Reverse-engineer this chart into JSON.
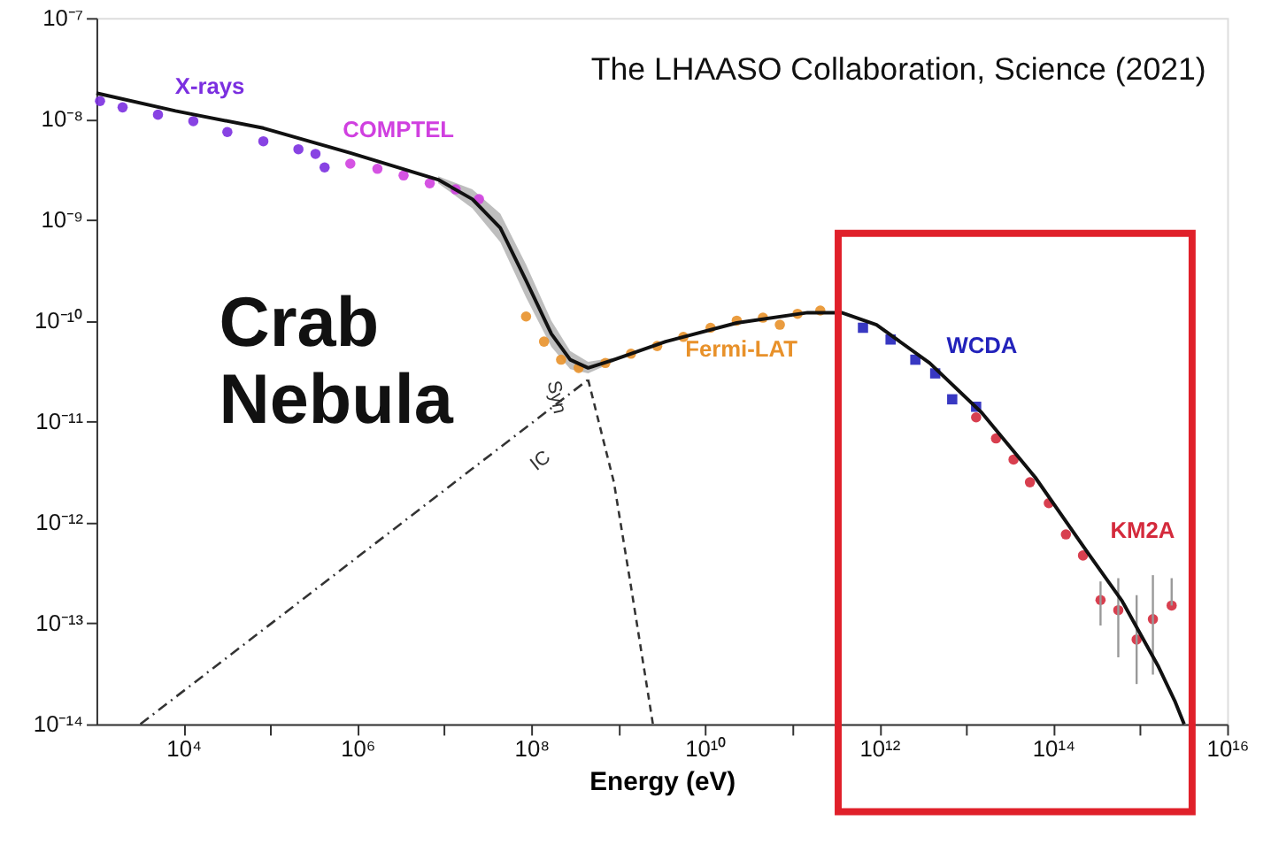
{
  "chart_data": {
    "type": "scatter",
    "xlabel": "Energy (eV)",
    "annotations": [
      "The LHAASO Collaboration, Science (2021)",
      "Crab Nebula"
    ],
    "log": "xy",
    "grid": false,
    "legend": false,
    "xlim": [
      1000,
      1e+16
    ],
    "ylim": [
      1e-14,
      1e-07
    ],
    "xticks": [
      {
        "value": 10000,
        "label": "10⁴"
      },
      {
        "value": 100000,
        "label": null
      },
      {
        "value": 1000000.0,
        "label": "10⁶"
      },
      {
        "value": 10000000.0,
        "label": null
      },
      {
        "value": 100000000.0,
        "label": "10⁸"
      },
      {
        "value": 1000000000.0,
        "label": null
      },
      {
        "value": 10000000000.0,
        "label": "10¹⁰"
      },
      {
        "value": 100000000000.0,
        "label": null
      },
      {
        "value": 1000000000000.0,
        "label": "10¹²"
      },
      {
        "value": 10000000000000.0,
        "label": null
      },
      {
        "value": 100000000000000.0,
        "label": "10¹⁴"
      },
      {
        "value": 1000000000000000.0,
        "label": null
      },
      {
        "value": 1e+16,
        "label": "10¹⁶"
      }
    ],
    "yticks": [
      {
        "value": 1e-14,
        "label": "10⁻¹⁴"
      },
      {
        "value": 1e-13,
        "label": "10⁻¹³"
      },
      {
        "value": 1e-12,
        "label": "10⁻¹²"
      },
      {
        "value": 1e-11,
        "label": "10⁻¹¹"
      },
      {
        "value": 1e-10,
        "label": "10⁻¹⁰"
      },
      {
        "value": 1e-09,
        "label": "10⁻⁹"
      },
      {
        "value": 1e-08,
        "label": "10⁻⁸"
      },
      {
        "value": 1e-07,
        "label": "10⁻⁷"
      }
    ],
    "series": [
      {
        "name": "X-rays",
        "marker": "circle",
        "color": "#7b2fe0",
        "x": [
          1100,
          2000,
          5100,
          13000,
          32000,
          83000,
          210000,
          330000,
          420000
        ],
        "values": [
          1.5e-08,
          1.3e-08,
          1.1e-08,
          9.5e-09,
          7.4e-09,
          6e-09,
          5e-09,
          4.5e-09,
          3.3e-09
        ]
      },
      {
        "name": "COMPTEL",
        "marker": "circle",
        "color": "#d040e0",
        "x": [
          830000,
          1700000.0,
          3400000.0,
          6800000.0,
          13500000.0,
          25000000.0
        ],
        "values": [
          3.6e-09,
          3.2e-09,
          2.75e-09,
          2.3e-09,
          2e-09,
          1.6e-09
        ]
      },
      {
        "name": "Fermi-LAT",
        "marker": "circle",
        "color": "#e8912a",
        "x": [
          87000000.0,
          140000000.0,
          220000000.0,
          350000000.0,
          710000000.0,
          1400000000.0,
          2800000000.0,
          5600000000.0,
          11500000000.0,
          23000000000.0,
          46000000000.0,
          72000000000.0,
          115000000000.0,
          210000000000.0
        ],
        "values": [
          1.1e-10,
          6.2e-11,
          4.1e-11,
          3.4e-11,
          3.8e-11,
          4.7e-11,
          5.6e-11,
          6.9e-11,
          8.5e-11,
          1e-10,
          1.07e-10,
          9.1e-11,
          1.17e-10,
          1.26e-10
        ]
      },
      {
        "name": "WCDA",
        "marker": "square",
        "color": "#2222bb",
        "x": [
          650000000000.0,
          1350000000000.0,
          2600000000000.0,
          4400000000000.0,
          6900000000000.0,
          13000000000000.0
        ],
        "values": [
          8.5e-11,
          6.5e-11,
          4.1e-11,
          3e-11,
          1.66e-11,
          1.4e-11
        ]
      },
      {
        "name": "KM2A",
        "marker": "circle",
        "color": "#d42a3c",
        "x": [
          13000000000000.0,
          22000000000000.0,
          35000000000000.0,
          54000000000000.0,
          89000000000000.0,
          140000000000000.0,
          220000000000000.0,
          350000000000000.0,
          560000000000000.0,
          910000000000000.0,
          1400000000000000.0,
          2300000000000000.0
        ],
        "values": [
          1.1e-11,
          6.8e-12,
          4.2e-12,
          2.5e-12,
          1.55e-12,
          7.6e-13,
          4.7e-13,
          1.7e-13,
          1.35e-13,
          6.9e-14,
          1.1e-13,
          1.5e-13
        ],
        "errors": [
          null,
          null,
          null,
          null,
          null,
          null,
          null,
          [
            9.5e-14,
            2.6e-13
          ],
          [
            4.6e-14,
            2.8e-13
          ],
          [
            2.5e-14,
            1.9e-13
          ],
          [
            3.1e-14,
            3e-13
          ],
          [
            1.5e-13,
            2.8e-13
          ]
        ]
      },
      {
        "type": "line",
        "line_style": "solid",
        "color": "#111111",
        "x": [
          1000,
          8100,
          83000,
          830000,
          8500000.0,
          21000000.0,
          44000000.0,
          87000000.0,
          170000000.0,
          280000000.0,
          450000000.0,
          890000000.0,
          3500000000.0,
          23000000000.0,
          150000000000.0,
          370000000000.0,
          930000000000.0,
          3800000000000.0,
          15000000000000.0,
          62000000000000.0,
          250000000000000.0,
          620000000000000.0,
          1600000000000000.0,
          2500000000000000.0,
          3200000000000000.0
        ],
        "values": [
          1.8e-08,
          1.2e-08,
          8.1e-09,
          4.6e-09,
          2.5e-09,
          1.6e-09,
          8.3e-10,
          2.5e-10,
          7.4e-11,
          4.1e-11,
          3.4e-11,
          4.1e-11,
          6.2e-11,
          9.5e-11,
          1.2e-10,
          1.2e-10,
          9.1e-11,
          3.8e-11,
          1.23e-11,
          2.8e-12,
          5e-13,
          1.66e-13,
          3.8e-14,
          1.7e-14,
          1e-14
        ],
        "lower": [
          null,
          null,
          null,
          null,
          2.3e-09,
          1.3e-09,
          6e-10,
          1.7e-10,
          5.5e-11,
          3.3e-11,
          3e-11,
          3.9e-11,
          null,
          null,
          null,
          null,
          null,
          null,
          null,
          null,
          null,
          null,
          null,
          null,
          null
        ],
        "upper": [
          null,
          null,
          null,
          null,
          2.7e-09,
          2e-09,
          1.15e-09,
          3.6e-10,
          1e-10,
          5e-11,
          3.9e-11,
          4.3e-11,
          null,
          null,
          null,
          null,
          null,
          null,
          null,
          null,
          null,
          null,
          null,
          null,
          null
        ]
      },
      {
        "name": "IC",
        "type": "line",
        "line_style": "dashed",
        "color": "#333333",
        "x": [
          3200,
          450000000.0
        ],
        "values": [
          1e-14,
          2.6e-11
        ]
      },
      {
        "name": "Syn",
        "type": "line",
        "line_style": "dotted",
        "color": "#333333",
        "x": [
          450000000.0,
          890000000.0,
          1400000000.0,
          2500000000.0
        ],
        "values": [
          2.6e-11,
          2.5e-12,
          2.3e-13,
          1e-14
        ]
      }
    ]
  }
}
